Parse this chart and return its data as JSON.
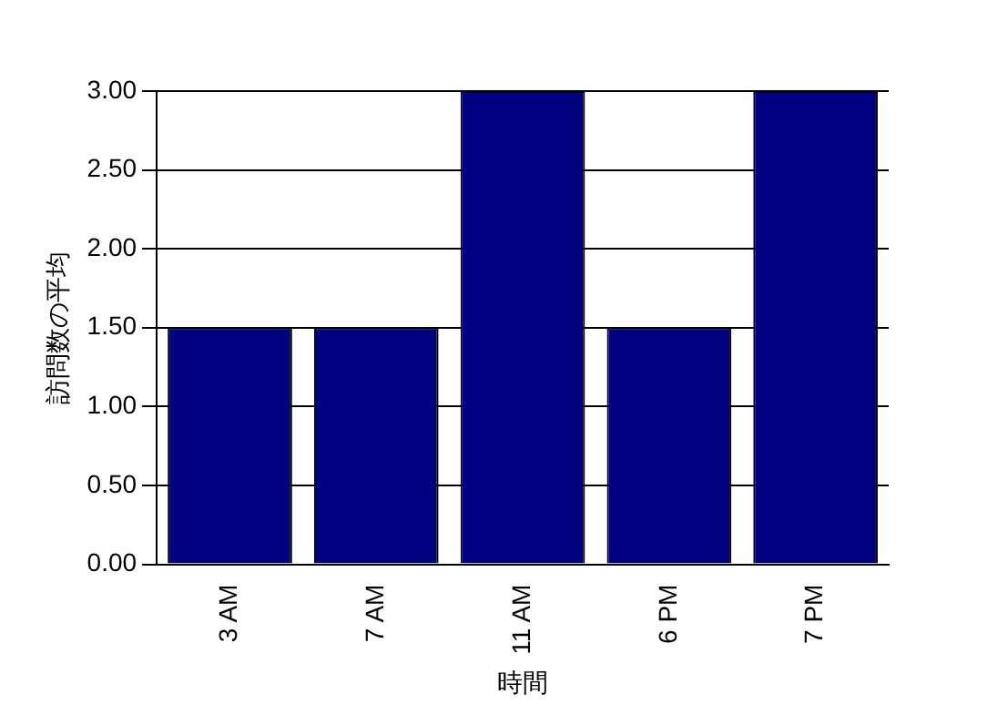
{
  "chart_data": {
    "type": "bar",
    "xlabel": "時間",
    "ylabel": "訪問数の平均",
    "categories": [
      "3 AM",
      "7 AM",
      "11 AM",
      "6 PM",
      "7 PM"
    ],
    "values": [
      1.5,
      1.5,
      3,
      1.5,
      3
    ],
    "color": "#000080",
    "ylim": [
      0,
      3
    ],
    "yticks": [
      {
        "value": 0,
        "label": "0.00"
      },
      {
        "value": 0.5,
        "label": "0.50"
      },
      {
        "value": 1,
        "label": "1.00"
      },
      {
        "value": 1.5,
        "label": "1.50"
      },
      {
        "value": 2,
        "label": "2.00"
      },
      {
        "value": 2.5,
        "label": "2.50"
      },
      {
        "value": 3,
        "label": "3.00"
      }
    ],
    "grid": "y"
  }
}
